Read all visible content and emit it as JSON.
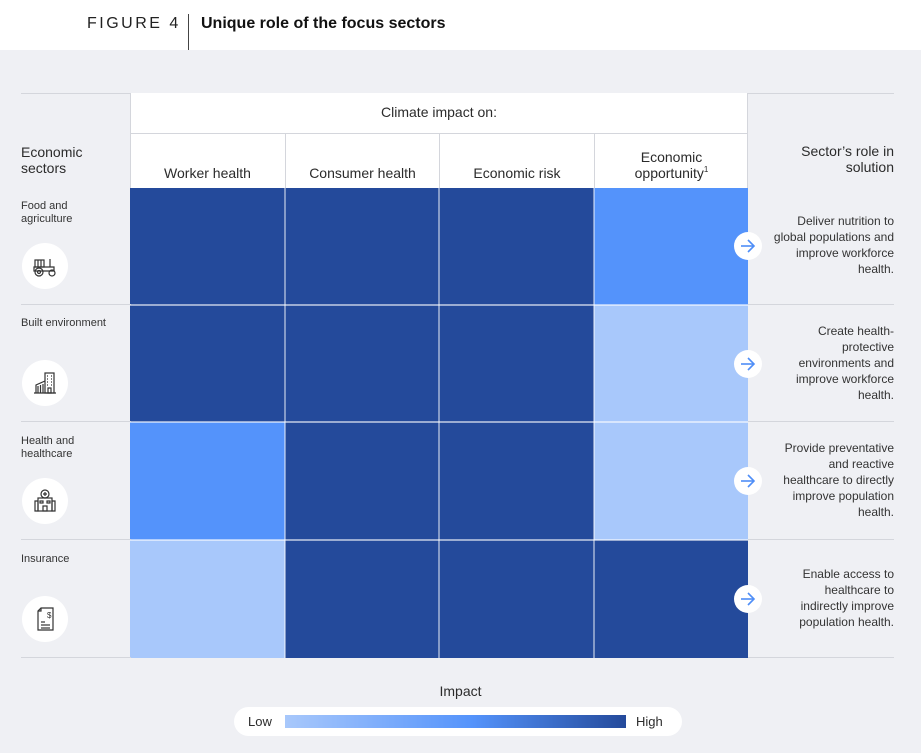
{
  "figure": {
    "label": "FIGURE 4",
    "title": "Unique role of the focus sectors"
  },
  "header": {
    "climate_impact": "Climate impact on:",
    "sectors": "Economic sectors",
    "role": "Sector’s role in solution",
    "columns": [
      {
        "label": "Worker health",
        "sup": ""
      },
      {
        "label": "Consumer health",
        "sup": ""
      },
      {
        "label": "Economic risk",
        "sup": ""
      },
      {
        "label": "Economic opportunity",
        "sup": "1"
      }
    ]
  },
  "colors": {
    "high": "#244a9b",
    "medium": "#5493fb",
    "low": "#a8c8fb",
    "background": "#eff0f4"
  },
  "rows": [
    {
      "sector": "Food and agriculture",
      "icon": "tractor-icon",
      "role": "Deliver nutrition to global populations and improve workforce health."
    },
    {
      "sector": "Built environment",
      "icon": "building-icon",
      "role": "Create health-protective environments and improve workforce health."
    },
    {
      "sector": "Health and healthcare",
      "icon": "hospital-icon",
      "role": "Provide preventative and reactive healthcare to directly improve population health."
    },
    {
      "sector": "Insurance",
      "icon": "document-dollar-icon",
      "role": "Enable access to healthcare to indirectly improve population health."
    }
  ],
  "legend": {
    "title": "Impact",
    "low": "Low",
    "high": "High"
  },
  "chart_data": {
    "type": "heatmap",
    "title": "Unique role of the focus sectors",
    "xlabel": "Climate impact on:",
    "ylabel": "Economic sectors",
    "categories": [
      "Worker health",
      "Consumer health",
      "Economic risk",
      "Economic opportunity"
    ],
    "rows": [
      "Food and agriculture",
      "Built environment",
      "Health and healthcare",
      "Insurance"
    ],
    "scale": [
      "Low",
      "Medium",
      "High"
    ],
    "values": [
      [
        "High",
        "High",
        "High",
        "Medium"
      ],
      [
        "High",
        "High",
        "High",
        "Low"
      ],
      [
        "Medium",
        "High",
        "High",
        "Low"
      ],
      [
        "Low",
        "High",
        "High",
        "High"
      ]
    ],
    "legend": {
      "title": "Impact",
      "min_label": "Low",
      "max_label": "High",
      "position": "bottom"
    }
  }
}
